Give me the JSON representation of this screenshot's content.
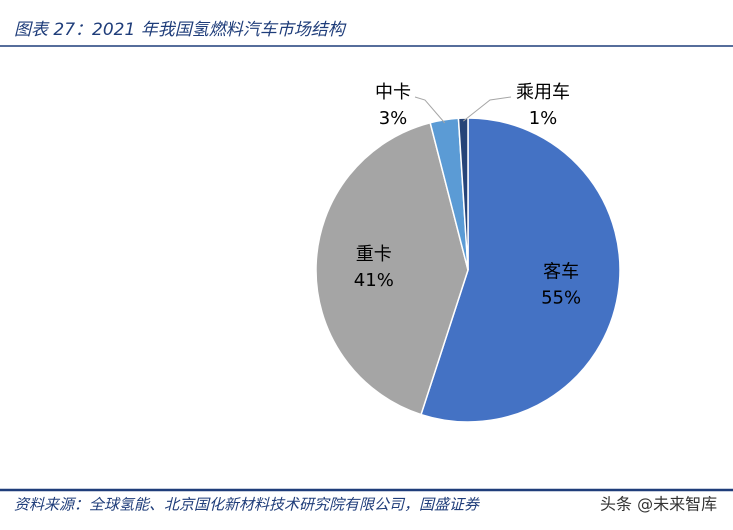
{
  "header": {
    "title": "图表 27：2021 年我国氢燃料汽车市场结构"
  },
  "chart_data": {
    "type": "pie",
    "categories": [
      "客车",
      "重卡",
      "中卡",
      "乘用车"
    ],
    "values": [
      55,
      41,
      3,
      1
    ],
    "value_labels": [
      "55%",
      "41%",
      "3%",
      "1%"
    ],
    "colors": [
      "#4472c4",
      "#a5a5a5",
      "#5b9bd5",
      "#264478"
    ]
  },
  "footer": {
    "source": "资料来源：全球氢能、北京国化新材料技术研究院有限公司，国盛证券",
    "watermark": "头条 @未来智库"
  }
}
